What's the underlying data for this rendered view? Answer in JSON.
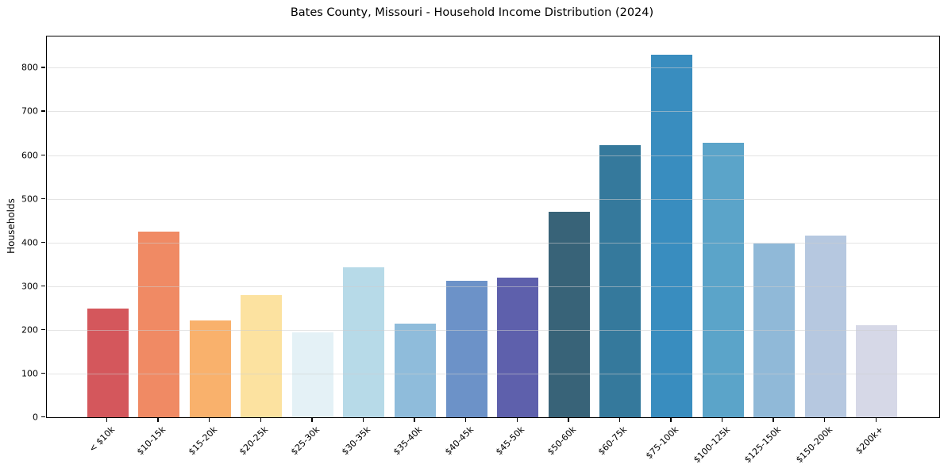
{
  "title": "Bates County, Missouri - Household Income Distribution (2024)",
  "chart_data": {
    "type": "bar",
    "title": "Bates County, Missouri - Household Income Distribution (2024)",
    "xlabel": "",
    "ylabel": "Households",
    "categories": [
      "< $10k",
      "$10-15k",
      "$15-20k",
      "$20-25k",
      "$25-30k",
      "$30-35k",
      "$35-40k",
      "$40-45k",
      "$45-50k",
      "$50-60k",
      "$60-75k",
      "$75-100k",
      "$100-125k",
      "$125-150k",
      "$150-200k",
      "$200k+"
    ],
    "values": [
      248,
      424,
      221,
      280,
      194,
      343,
      214,
      313,
      320,
      470,
      622,
      830,
      628,
      398,
      416,
      211
    ],
    "bar_colors": [
      "#d4575c",
      "#f08a64",
      "#f9b16c",
      "#fce2a0",
      "#e4f1f6",
      "#b7dae8",
      "#8fbcdb",
      "#6c92c8",
      "#5e60ac",
      "#386378",
      "#35799c",
      "#398dbf",
      "#5ba4c9",
      "#90b9d8",
      "#b6c8e0",
      "#d6d8e7"
    ],
    "yticks": [
      0,
      100,
      200,
      300,
      400,
      500,
      600,
      700,
      800
    ],
    "ytick_labels": [
      "0",
      "100",
      "200",
      "300",
      "400",
      "500",
      "600",
      "700",
      "800"
    ],
    "ylim": [
      0,
      871.5
    ],
    "grid": "horizontal",
    "legend": "none",
    "background_color": "#ffffff",
    "axis_color": "#000000",
    "gridline_color": "rgba(205,205,205,0.55)",
    "xtick_rotation_deg": 45
  }
}
